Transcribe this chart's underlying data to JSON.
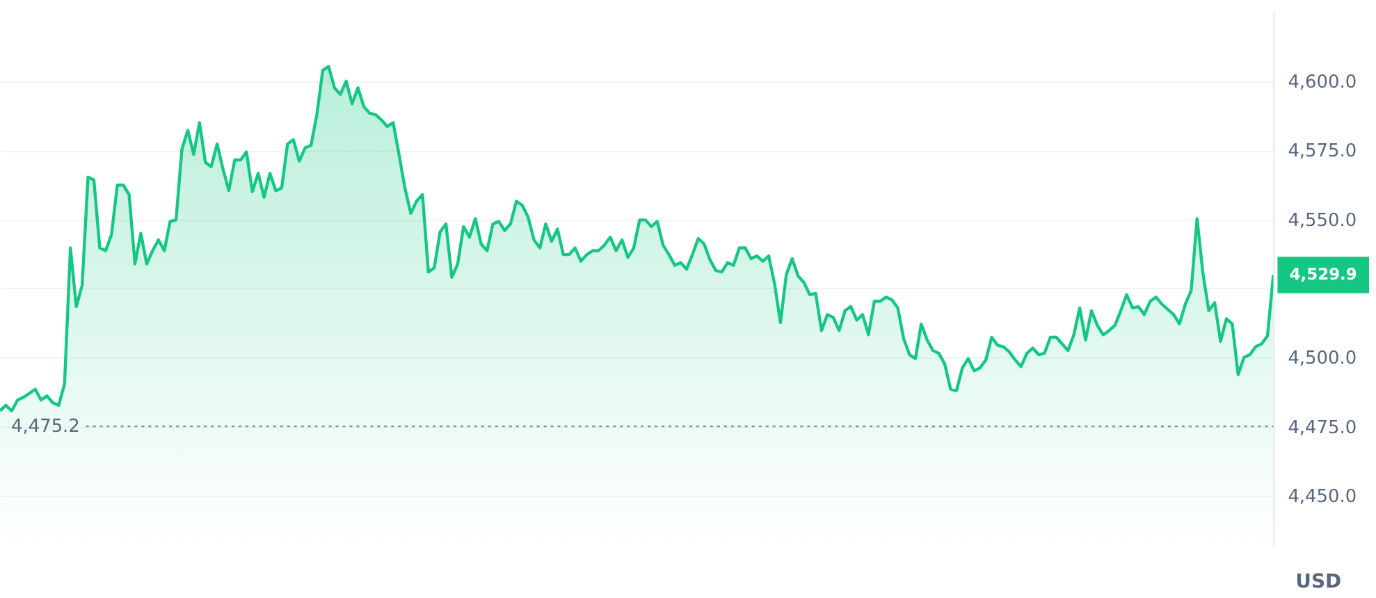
{
  "chart_data": {
    "type": "area",
    "categories": [
      null,
      null,
      null,
      null,
      null,
      null,
      null,
      null,
      null,
      null,
      null,
      null,
      null,
      null,
      null,
      null,
      null,
      null,
      null,
      null,
      null,
      null,
      null,
      null,
      null,
      null,
      null,
      null,
      null,
      null,
      null,
      null,
      null,
      null,
      null,
      null,
      null,
      null,
      null,
      null,
      null,
      null,
      null,
      null,
      null,
      null,
      null,
      null,
      null,
      null,
      null,
      null,
      null,
      null,
      null,
      null,
      null,
      null,
      null,
      null,
      null,
      null,
      null,
      null,
      null,
      null,
      null,
      null,
      null,
      null,
      null,
      null,
      null,
      null,
      null,
      null,
      null,
      null,
      null,
      null,
      null,
      null,
      null,
      null,
      null,
      null,
      null,
      null,
      null,
      null,
      null,
      null,
      null,
      null,
      null,
      null,
      null,
      null,
      null,
      null,
      null,
      null,
      null,
      null,
      null,
      null,
      null,
      null,
      null,
      null,
      null,
      null,
      null,
      null,
      null,
      null,
      null,
      null,
      null,
      null,
      null,
      null,
      null,
      null,
      null,
      null,
      null,
      null,
      null,
      null,
      null,
      null,
      null,
      null,
      null,
      null,
      null,
      null,
      null,
      null,
      null,
      null,
      null,
      null,
      null,
      null,
      null,
      null,
      null,
      null,
      null,
      null,
      null,
      null,
      null,
      null,
      null,
      null,
      null,
      null,
      null,
      null,
      null,
      null,
      null,
      null,
      null,
      null,
      null,
      null,
      null,
      null,
      null,
      null,
      null,
      null,
      null,
      null,
      null,
      null,
      null,
      null,
      null,
      null,
      null,
      null,
      null,
      null,
      null,
      null,
      null,
      null,
      null,
      null,
      null,
      null,
      null,
      null,
      null,
      null,
      null,
      null,
      null,
      null,
      null,
      null,
      null,
      null,
      null,
      null,
      null,
      null,
      null,
      null,
      null,
      null,
      null,
      null
    ],
    "series": [
      {
        "color": "#16c784",
        "values": [
          4480.8,
          4482.8,
          4480.8,
          4484.7,
          4485.7,
          4487.1,
          4488.6,
          4484.7,
          4486.2,
          4483.7,
          4482.8,
          4490.5,
          4539.7,
          4518.5,
          4526.2,
          4565.3,
          4564.3,
          4539.7,
          4538.7,
          4544.5,
          4562.4,
          4562.4,
          4559.0,
          4533.9,
          4545.0,
          4533.9,
          4538.7,
          4542.6,
          4538.7,
          4549.3,
          4549.8,
          4575.4,
          4582.2,
          4573.5,
          4585.0,
          4570.6,
          4569.1,
          4577.3,
          4568.2,
          4560.4,
          4571.5,
          4571.5,
          4574.4,
          4560.0,
          4566.7,
          4558.0,
          4566.7,
          4560.4,
          4561.4,
          4577.3,
          4578.8,
          4571.1,
          4575.9,
          4576.8,
          4587.9,
          4603.9,
          4605.3,
          4597.6,
          4595.2,
          4600.0,
          4591.8,
          4597.6,
          4590.8,
          4588.4,
          4587.9,
          4586.0,
          4583.6,
          4585.0,
          4573.5,
          4561.4,
          4552.2,
          4556.6,
          4559.0,
          4531.0,
          4532.5,
          4545.5,
          4548.4,
          4529.1,
          4533.9,
          4547.4,
          4543.6,
          4550.3,
          4541.1,
          4538.7,
          4548.4,
          4549.3,
          4546.0,
          4548.4,
          4556.6,
          4555.1,
          4550.8,
          4542.6,
          4539.7,
          4548.4,
          4542.1,
          4546.5,
          4537.3,
          4537.3,
          4539.7,
          4534.9,
          4537.3,
          4538.7,
          4538.7,
          4540.7,
          4543.6,
          4538.7,
          4542.6,
          4536.3,
          4539.7,
          4549.8,
          4549.8,
          4547.4,
          4549.3,
          4540.7,
          4537.3,
          4533.4,
          4534.4,
          4532.0,
          4537.3,
          4543.1,
          4541.1,
          4535.4,
          4531.5,
          4531.0,
          4534.4,
          4533.4,
          4539.7,
          4539.7,
          4535.8,
          4536.8,
          4534.9,
          4536.8,
          4526.7,
          4512.7,
          4530.1,
          4535.8,
          4529.6,
          4527.2,
          4522.8,
          4523.3,
          4509.8,
          4515.6,
          4514.6,
          4509.8,
          4517.0,
          4518.5,
          4513.6,
          4515.6,
          4508.3,
          4520.4,
          4520.4,
          4521.9,
          4520.9,
          4518.0,
          4506.9,
          4501.1,
          4499.7,
          4512.2,
          4506.4,
          4502.6,
          4501.6,
          4497.7,
          4488.6,
          4488.1,
          4496.3,
          4499.7,
          4495.3,
          4496.3,
          4499.2,
          4507.4,
          4504.5,
          4504.0,
          4502.1,
          4499.2,
          4496.8,
          4501.6,
          4503.5,
          4501.1,
          4501.6,
          4507.4,
          4507.4,
          4505.0,
          4502.6,
          4508.3,
          4518.0,
          4506.4,
          4517.0,
          4511.7,
          4508.3,
          4509.8,
          4511.7,
          4517.0,
          4522.8,
          4518.0,
          4518.5,
          4515.6,
          4520.4,
          4521.9,
          4519.4,
          4517.5,
          4515.6,
          4512.2,
          4519.4,
          4524.3,
          4550.3,
          4530.5,
          4517.0,
          4519.9,
          4505.9,
          4514.1,
          4512.2,
          4493.9,
          4500.1,
          4501.1,
          4504.0,
          4505.0,
          4507.9,
          4529.9
        ]
      }
    ],
    "ylim": [
      4432,
      4625
    ],
    "yticks": [
      {
        "value": 4450,
        "label": "4,450.0"
      },
      {
        "value": 4475,
        "label": "4,475.0"
      },
      {
        "value": 4500,
        "label": "4,500.0"
      },
      {
        "value": 4525,
        "label": null
      },
      {
        "value": 4550,
        "label": "4,550.0"
      },
      {
        "value": 4575,
        "label": "4,575.0"
      },
      {
        "value": 4600,
        "label": "4,600.0"
      }
    ],
    "ylabel": "USD",
    "grid": "y",
    "ref_lines": [
      {
        "axis": "y",
        "value": 4475.2,
        "label": "4,475.2",
        "color": "#808a9d",
        "line_style": "dotted"
      }
    ],
    "annotations": [
      "4,529.9"
    ]
  }
}
